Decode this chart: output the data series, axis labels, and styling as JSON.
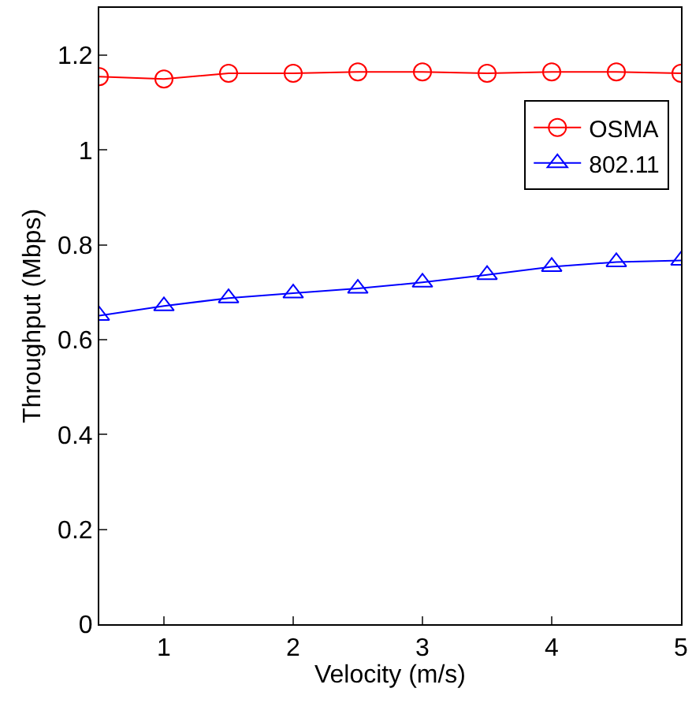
{
  "chart_data": {
    "type": "line",
    "xlabel": "Velocity (m/s)",
    "ylabel": "Throughput (Mbps)",
    "x": [
      0.5,
      1,
      1.5,
      2,
      2.5,
      3,
      3.5,
      4,
      4.5,
      5
    ],
    "series": [
      {
        "name": "OSMA",
        "color": "#ff0000",
        "marker": "circle",
        "values": [
          1.155,
          1.15,
          1.162,
          1.162,
          1.165,
          1.165,
          1.162,
          1.165,
          1.165,
          1.162
        ]
      },
      {
        "name": "802.11",
        "color": "#0000ff",
        "marker": "triangle",
        "values": [
          0.651,
          0.671,
          0.688,
          0.698,
          0.708,
          0.721,
          0.737,
          0.754,
          0.764,
          0.767
        ]
      }
    ],
    "xlim": [
      0.5,
      5
    ],
    "xticks": [
      1,
      2,
      3,
      4,
      5
    ],
    "ylim": [
      0,
      1.3
    ],
    "yticks": [
      0,
      0.2,
      0.4,
      0.6,
      0.8,
      1,
      1.2
    ],
    "grid": false,
    "legend": "top right",
    "line_style": "solid"
  }
}
